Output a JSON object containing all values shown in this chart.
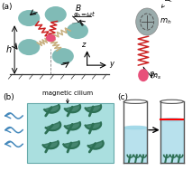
{
  "fig_width": 2.13,
  "fig_height": 1.89,
  "dpi": 100,
  "bg_color": "#ffffff",
  "label_a": "(a)",
  "label_b": "(b)",
  "label_c": "(c)",
  "teal_color": "#6ab0aa",
  "teal_cilium": "#2d7055",
  "spring_red": "#cc2222",
  "spring_tan": "#c8b080",
  "pink_color": "#e8507a",
  "gray_sphere": "#9aacac",
  "arrow_color": "#111111",
  "water_color": "#a0d8e8",
  "wave_color": "#4488bb",
  "box_color": "#aadfdf",
  "box_edge": "#66aaaa",
  "ground_color": "#333333",
  "axis_color": "#111111",
  "mag_cilium_label": "magnetic cilium",
  "h_label": "h",
  "z_label": "z",
  "y_label": "y"
}
